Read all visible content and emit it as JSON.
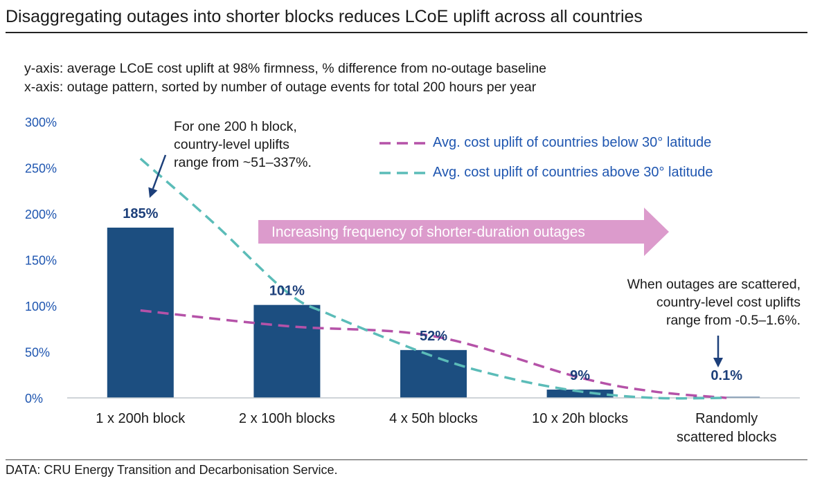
{
  "title": "Disaggregating outages into shorter blocks reduces LCoE uplift across all countries",
  "subtitle_y": "y-axis: average LCoE cost uplift at 98% firmness, % difference from no-outage baseline",
  "subtitle_x": "x-axis: outage pattern, sorted by number of outage events for total 200 hours per year",
  "footer": "DATA: CRU Energy Transition and Decarbonisation Service.",
  "colors": {
    "bar": "#1c4e80",
    "below30": "#b552a8",
    "above30": "#5bbcb8",
    "arrow_band": "#dc9bcc",
    "axis_text": "#1f56b0",
    "value_label": "#1c3f7a"
  },
  "annotations": {
    "left": "For one 200 h block,\ncountry-level uplifts\nrange from ~51–337%.",
    "right": "When outages are scattered,\ncountry-level cost uplifts\nrange from -0.5–1.6%.",
    "arrow_band": "Increasing frequency of shorter-duration outages"
  },
  "chart_data": {
    "type": "bar",
    "categories": [
      "1 x 200h block",
      "2 x 100h blocks",
      "4 x 50h blocks",
      "10 x 20h blocks",
      "Randomly scattered blocks"
    ],
    "category_lines": [
      [
        "1 x 200h block"
      ],
      [
        "2 x 100h blocks"
      ],
      [
        "4 x 50h blocks"
      ],
      [
        "10 x 20h blocks"
      ],
      [
        "Randomly",
        "scattered blocks"
      ]
    ],
    "values": [
      185,
      101,
      52,
      9,
      0.1
    ],
    "value_labels": [
      "185%",
      "101%",
      "52%",
      "9%",
      "0.1%"
    ],
    "ylim": [
      0,
      300
    ],
    "yticks": [
      0,
      50,
      100,
      150,
      200,
      250,
      300
    ],
    "ytick_labels": [
      "0%",
      "50%",
      "100%",
      "150%",
      "200%",
      "250%",
      "300%"
    ],
    "lines": [
      {
        "name": "Avg. cost uplift of countries below 30° latitude",
        "style": "dashed",
        "x": [
          0,
          1,
          2,
          3,
          3.5,
          4
        ],
        "values": [
          95,
          78,
          67,
          22,
          7,
          0
        ]
      },
      {
        "name": "Avg. cost uplift of countries above 30° latitude",
        "style": "dashed",
        "x": [
          0,
          0.5,
          1,
          1.3,
          2,
          2.5,
          3,
          3.5,
          4
        ],
        "values": [
          260,
          190,
          115,
          90,
          45,
          22,
          7,
          0,
          0
        ]
      }
    ],
    "legend": [
      "Avg. cost uplift of countries below 30° latitude",
      "Avg. cost uplift of countries above 30° latitude"
    ]
  }
}
